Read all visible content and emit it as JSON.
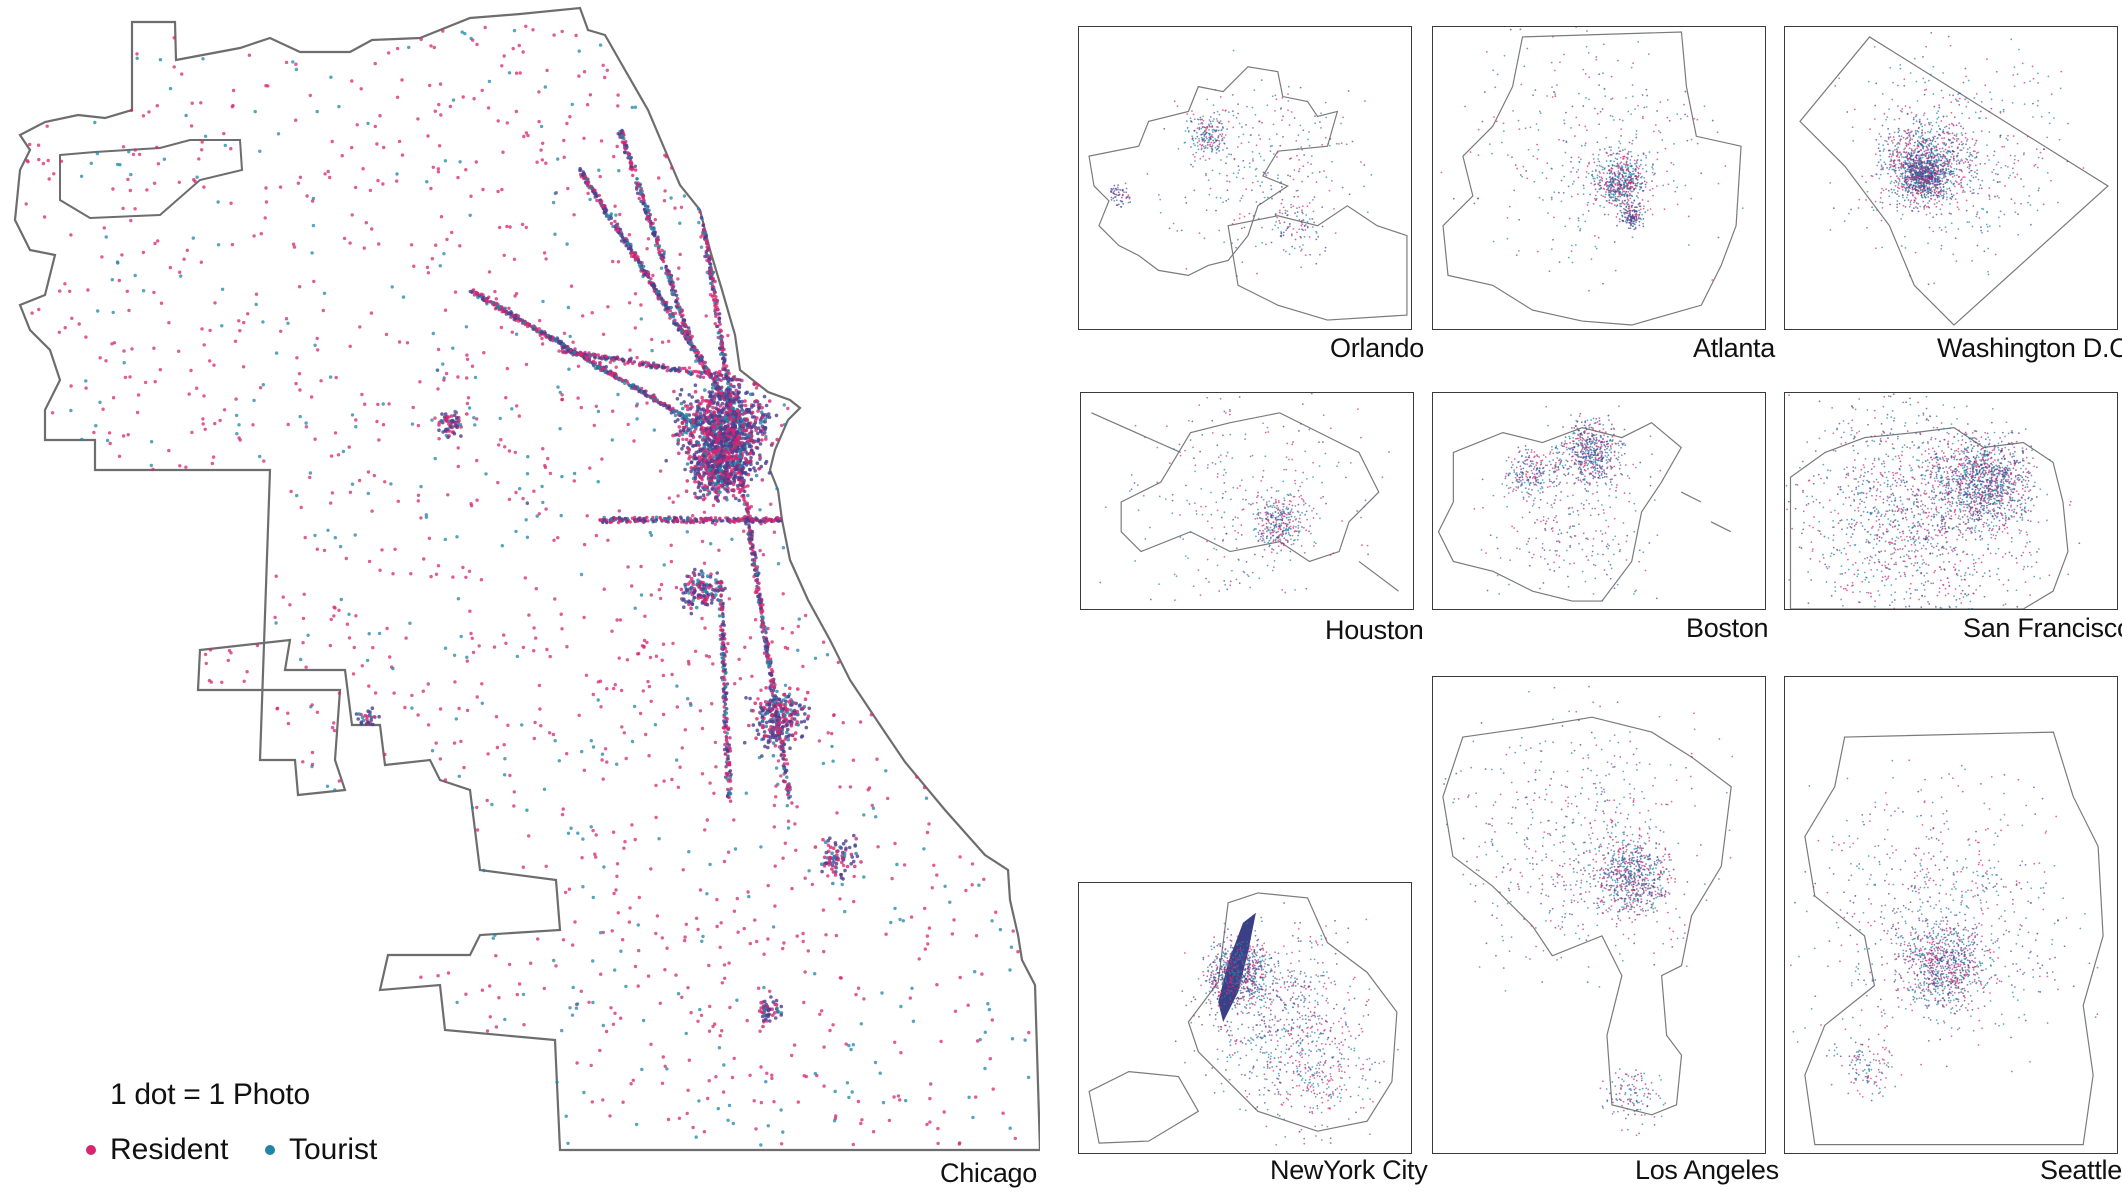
{
  "legend": {
    "title": "1 dot = 1 Photo",
    "items": [
      {
        "label": "Resident",
        "color": "#d6266f"
      },
      {
        "label": "Tourist",
        "color": "#1f86a8"
      }
    ]
  },
  "main_map": {
    "city": "Chicago"
  },
  "cities": [
    {
      "name": "Orlando"
    },
    {
      "name": "Atlanta"
    },
    {
      "name": "Washington D.C."
    },
    {
      "name": "Houston"
    },
    {
      "name": "Boston"
    },
    {
      "name": "San Francisco"
    },
    {
      "name": "NewYork City"
    },
    {
      "name": "Los Angeles"
    },
    {
      "name": "Seattle"
    }
  ],
  "colors": {
    "resident": "#d6266f",
    "tourist": "#1f86a8",
    "dense": "#4a3d8f",
    "boundary": "#6d6d6d"
  }
}
